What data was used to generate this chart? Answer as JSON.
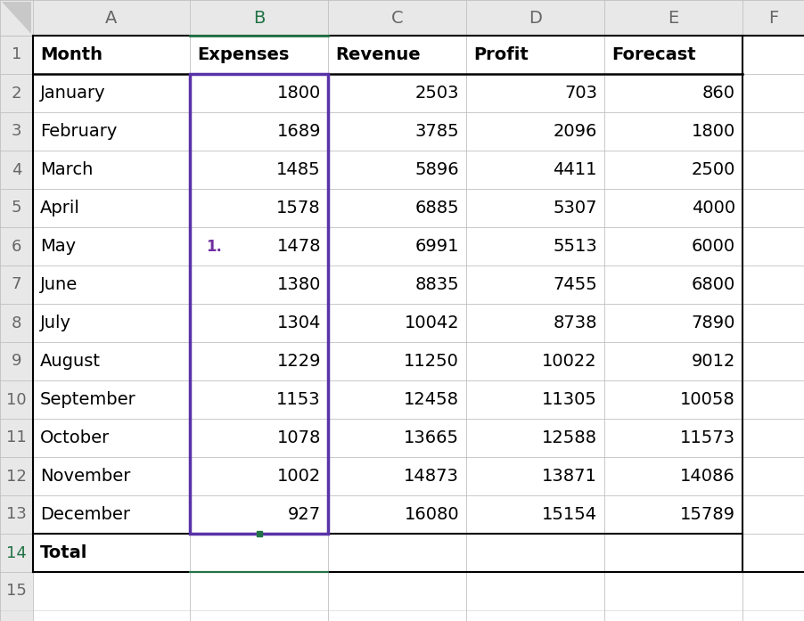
{
  "col_headers": [
    "A",
    "B",
    "C",
    "D",
    "E",
    "F"
  ],
  "headers": [
    "Month",
    "Expenses",
    "Revenue",
    "Profit",
    "Forecast"
  ],
  "months": [
    "January",
    "February",
    "March",
    "April",
    "May",
    "June",
    "July",
    "August",
    "September",
    "October",
    "November",
    "December",
    "Total"
  ],
  "expenses": [
    1800,
    1689,
    1485,
    1578,
    1478,
    1380,
    1304,
    1229,
    1153,
    1078,
    1002,
    927,
    ""
  ],
  "revenue": [
    2503,
    3785,
    5896,
    6885,
    6991,
    8835,
    10042,
    11250,
    12458,
    13665,
    14873,
    16080,
    ""
  ],
  "profit": [
    703,
    2096,
    4411,
    5307,
    5513,
    7455,
    8738,
    10022,
    11305,
    12588,
    13871,
    15154,
    ""
  ],
  "forecast": [
    860,
    1800,
    2500,
    4000,
    6000,
    6800,
    7890,
    9012,
    10058,
    11573,
    14086,
    15789,
    ""
  ],
  "bg_color": "#ffffff",
  "header_bg": "#e8e8e8",
  "grid_color": "#c0c0c0",
  "grid_color_light": "#d8d8d8",
  "col_header_color": "#666666",
  "row_number_color": "#666666",
  "b_col_header_color": "#217346",
  "selection_border_color": "#5932a8",
  "annotation_color": "#7030a0",
  "cell_text_color": "#000000",
  "thick_border_color": "#000000",
  "green_border_color": "#217346",
  "row14_num_color": "#217346",
  "fig_width": 9.02,
  "fig_height": 6.97
}
